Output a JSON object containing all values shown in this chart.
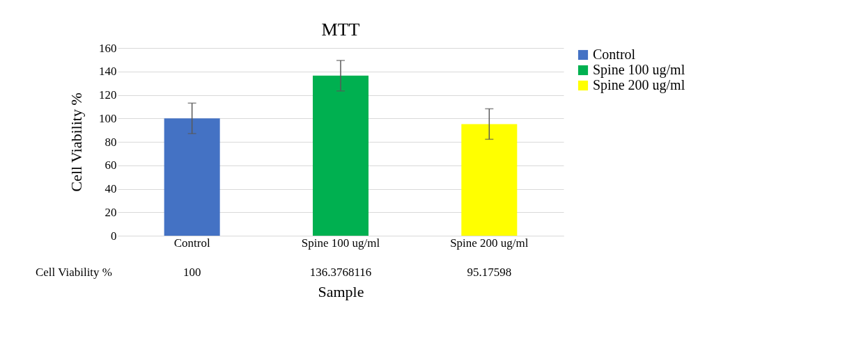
{
  "chart_data": {
    "type": "bar",
    "title": "MTT",
    "xlabel": "Sample",
    "ylabel": "Cell Viability %",
    "categories": [
      "Control",
      "Spine 100 ug/ml",
      "Spine 200 ug/ml"
    ],
    "series": [
      {
        "name": "Control",
        "color": "#4472c4",
        "values": [
          100,
          null,
          null
        ],
        "errors": [
          13,
          null,
          null
        ]
      },
      {
        "name": "Spine 100 ug/ml",
        "color": "#00b050",
        "values": [
          null,
          136.3768116,
          null
        ],
        "errors": [
          null,
          13,
          null
        ]
      },
      {
        "name": "Spine 200 ug/ml",
        "color": "#ffff00",
        "values": [
          null,
          null,
          95.17598
        ],
        "errors": [
          null,
          null,
          13
        ]
      }
    ],
    "stacked": true,
    "annotations": [
      "Cell Viability %"
    ],
    "ylim": [
      0,
      160
    ],
    "yticks": [
      0,
      20,
      40,
      60,
      80,
      100,
      120,
      140,
      160
    ],
    "grid": "y",
    "legend": "right",
    "data_labels": true
  }
}
